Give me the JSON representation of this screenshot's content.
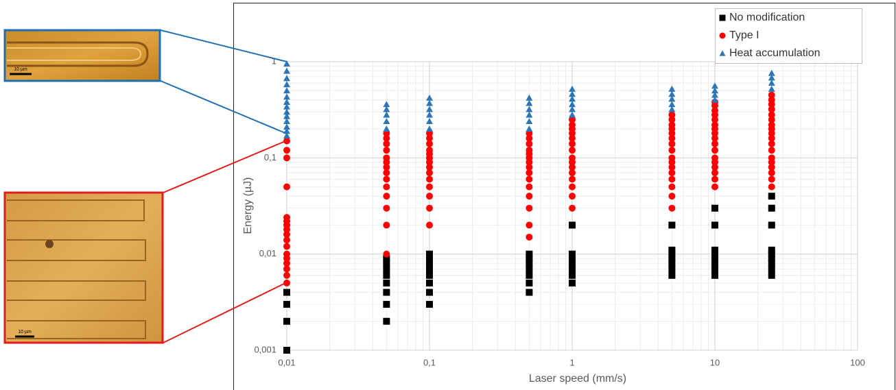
{
  "chart_data": {
    "type": "scatter",
    "x_label": "Laser speed (mm/s)",
    "y_label": "Energy (µJ)",
    "x_log": true,
    "y_log": true,
    "grid": true,
    "minor_grid": true,
    "legend": "top-right",
    "xlim": [
      0.01,
      100
    ],
    "ylim": [
      0.001,
      1
    ],
    "xticks": [
      {
        "value": 0.01,
        "label": "0,01"
      },
      {
        "value": 0.1,
        "label": "0,1"
      },
      1,
      10,
      100
    ],
    "yticks": [
      {
        "value": 0.001,
        "label": "0,001"
      },
      {
        "value": 0.01,
        "label": "0,01"
      },
      {
        "value": 0.1,
        "label": "0,1"
      },
      1
    ],
    "series": [
      {
        "name": "No modification",
        "color": "#000000",
        "marker": "square",
        "groups": [
          {
            "x": 0.01,
            "y": [
              0.001,
              0.002,
              0.003,
              0.004
            ]
          },
          {
            "x": 0.05,
            "y": [
              0.002,
              0.003,
              0.004,
              0.005,
              0.006,
              0.007,
              0.008,
              0.009
            ]
          },
          {
            "x": 0.1,
            "y": [
              0.003,
              0.004,
              0.005,
              0.006,
              0.007,
              0.008,
              0.009,
              0.01
            ]
          },
          {
            "x": 0.5,
            "y": [
              0.004,
              0.005,
              0.006,
              0.007,
              0.008,
              0.009,
              0.01
            ]
          },
          {
            "x": 1,
            "y": [
              0.005,
              0.006,
              0.007,
              0.008,
              0.009,
              0.01,
              0.02
            ]
          },
          {
            "x": 5,
            "y": [
              0.006,
              0.007,
              0.008,
              0.009,
              0.01,
              0.011,
              0.02
            ]
          },
          {
            "x": 10,
            "y": [
              0.006,
              0.007,
              0.008,
              0.009,
              0.01,
              0.011,
              0.02,
              0.03
            ]
          },
          {
            "x": 25,
            "y": [
              0.006,
              0.007,
              0.008,
              0.009,
              0.01,
              0.011,
              0.02,
              0.03,
              0.04
            ]
          }
        ]
      },
      {
        "name": "Type I",
        "color": "#ff0000",
        "marker": "circle",
        "groups": [
          {
            "x": 0.01,
            "y": [
              0.005,
              0.006,
              0.007,
              0.008,
              0.009,
              0.01,
              0.012,
              0.014,
              0.016,
              0.018,
              0.02,
              0.022,
              0.024,
              0.05,
              0.1,
              0.12,
              0.15
            ]
          },
          {
            "x": 0.05,
            "y": [
              0.01,
              0.02,
              0.03,
              0.04,
              0.05,
              0.06,
              0.07,
              0.08,
              0.09,
              0.1,
              0.12,
              0.14,
              0.16,
              0.18
            ]
          },
          {
            "x": 0.1,
            "y": [
              0.02,
              0.03,
              0.04,
              0.05,
              0.06,
              0.07,
              0.08,
              0.09,
              0.1,
              0.11,
              0.12,
              0.14,
              0.16,
              0.18
            ]
          },
          {
            "x": 0.5,
            "y": [
              0.015,
              0.02,
              0.03,
              0.04,
              0.05,
              0.06,
              0.07,
              0.08,
              0.09,
              0.1,
              0.11,
              0.12,
              0.14,
              0.16,
              0.18
            ]
          },
          {
            "x": 1,
            "y": [
              0.03,
              0.04,
              0.05,
              0.06,
              0.07,
              0.08,
              0.09,
              0.1,
              0.12,
              0.14,
              0.16,
              0.18,
              0.2,
              0.22,
              0.25
            ]
          },
          {
            "x": 5,
            "y": [
              0.03,
              0.04,
              0.05,
              0.06,
              0.07,
              0.08,
              0.09,
              0.1,
              0.12,
              0.14,
              0.16,
              0.18,
              0.2,
              0.22,
              0.25,
              0.28
            ]
          },
          {
            "x": 10,
            "y": [
              0.05,
              0.06,
              0.07,
              0.08,
              0.09,
              0.1,
              0.12,
              0.14,
              0.16,
              0.18,
              0.2,
              0.22,
              0.25,
              0.28,
              0.31,
              0.35,
              0.38
            ]
          },
          {
            "x": 25,
            "y": [
              0.05,
              0.06,
              0.07,
              0.08,
              0.09,
              0.1,
              0.12,
              0.14,
              0.16,
              0.18,
              0.2,
              0.22,
              0.25,
              0.28,
              0.32,
              0.36,
              0.4,
              0.45
            ]
          }
        ]
      },
      {
        "name": "Heat accumulation",
        "color": "#2e75b6",
        "marker": "triangle",
        "groups": [
          {
            "x": 0.01,
            "y": [
              0.17,
              0.19,
              0.21,
              0.24,
              0.27,
              0.3,
              0.34,
              0.38,
              0.43,
              0.5,
              0.58,
              0.67,
              0.8,
              0.95
            ]
          },
          {
            "x": 0.05,
            "y": [
              0.2,
              0.24,
              0.28,
              0.32,
              0.36
            ]
          },
          {
            "x": 0.1,
            "y": [
              0.2,
              0.24,
              0.28,
              0.32,
              0.37,
              0.42
            ]
          },
          {
            "x": 0.5,
            "y": [
              0.2,
              0.24,
              0.28,
              0.32,
              0.37,
              0.42
            ]
          },
          {
            "x": 1,
            "y": [
              0.28,
              0.32,
              0.36,
              0.41,
              0.46,
              0.52
            ]
          },
          {
            "x": 5,
            "y": [
              0.32,
              0.36,
              0.41,
              0.46,
              0.52
            ]
          },
          {
            "x": 10,
            "y": [
              0.4,
              0.45,
              0.5,
              0.56
            ]
          },
          {
            "x": 25,
            "y": [
              0.52,
              0.6,
              0.68,
              0.76
            ]
          }
        ]
      }
    ]
  },
  "images": [
    {
      "scale_label": "10 µm"
    },
    {
      "scale_label": "10 µm"
    }
  ]
}
